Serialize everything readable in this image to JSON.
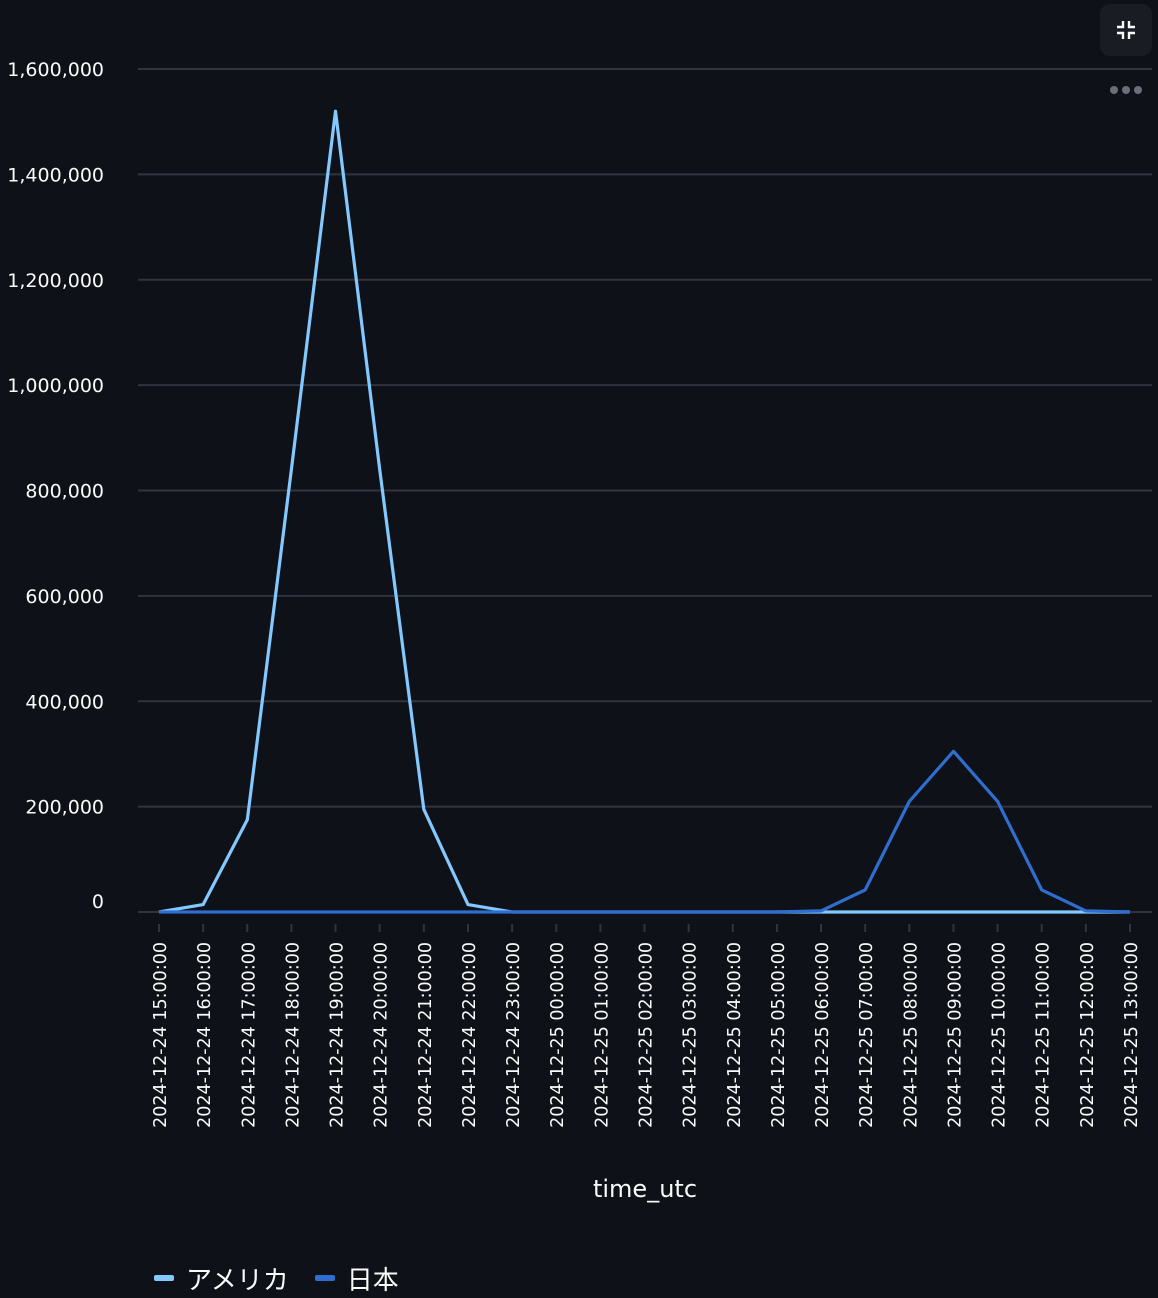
{
  "chart_data": {
    "type": "line",
    "x": [
      "2024-12-24 15:00:00",
      "2024-12-24 16:00:00",
      "2024-12-24 17:00:00",
      "2024-12-24 18:00:00",
      "2024-12-24 19:00:00",
      "2024-12-24 20:00:00",
      "2024-12-24 21:00:00",
      "2024-12-24 22:00:00",
      "2024-12-24 23:00:00",
      "2024-12-25 00:00:00",
      "2024-12-25 01:00:00",
      "2024-12-25 02:00:00",
      "2024-12-25 03:00:00",
      "2024-12-25 04:00:00",
      "2024-12-25 05:00:00",
      "2024-12-25 06:00:00",
      "2024-12-25 07:00:00",
      "2024-12-25 08:00:00",
      "2024-12-25 09:00:00",
      "2024-12-25 10:00:00",
      "2024-12-25 11:00:00",
      "2024-12-25 12:00:00",
      "2024-12-25 13:00:00"
    ],
    "series": [
      {
        "name": "アメリカ",
        "color": "#83c9ff",
        "values": [
          0,
          14000,
          175000,
          840000,
          1520000,
          840000,
          195000,
          14000,
          0,
          0,
          0,
          0,
          0,
          0,
          0,
          0,
          0,
          0,
          0,
          0,
          0,
          0,
          0
        ]
      },
      {
        "name": "日本",
        "color": "#2f6ed0",
        "values": [
          0,
          0,
          0,
          0,
          0,
          0,
          0,
          0,
          0,
          0,
          0,
          0,
          0,
          0,
          0,
          2000,
          42000,
          210000,
          305000,
          210000,
          42000,
          2000,
          0
        ]
      }
    ],
    "xlabel": "time_utc",
    "ylabel": "",
    "ylim": [
      0,
      1600000
    ],
    "yticks": [
      0,
      200000,
      400000,
      600000,
      800000,
      1000000,
      1200000,
      1400000,
      1600000
    ],
    "ytick_labels": [
      "0",
      "200,000",
      "400,000",
      "600,000",
      "800,000",
      "1,000,000",
      "1,200,000",
      "1,400,000",
      "1,600,000"
    ],
    "grid": true,
    "legend_position": "bottom-left"
  },
  "toolbar": {
    "fullscreen_icon": "collapse-icon",
    "menu_icon": "more-horizontal-icon"
  },
  "colors": {
    "background": "#0e1117",
    "gridline": "#31333f",
    "text": "#fafafa"
  }
}
